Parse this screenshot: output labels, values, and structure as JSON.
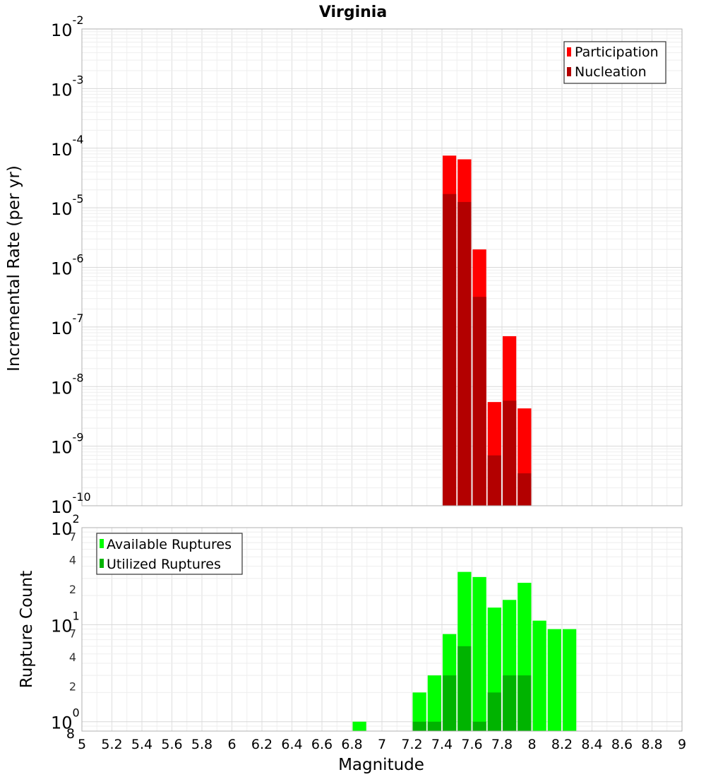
{
  "chart_data": [
    {
      "type": "bar",
      "title": "Virginia",
      "xlabel": "Magnitude",
      "ylabel": "Incremental Rate (per yr)",
      "yscale": "log",
      "ylim": [
        1e-10,
        0.01
      ],
      "xlim": [
        5,
        9
      ],
      "bin_width": 0.1,
      "legend_position": "top-right",
      "colors": {
        "Participation": "#ff0000",
        "Nucleation": "#b30000"
      },
      "y_tick_labels": [
        {
          "value": 0.01,
          "base": "10",
          "exp": "-2"
        },
        {
          "value": 0.001,
          "base": "10",
          "exp": "-3"
        },
        {
          "value": 0.0001,
          "base": "10",
          "exp": "-4"
        },
        {
          "value": 1e-05,
          "base": "10",
          "exp": "-5"
        },
        {
          "value": 1e-06,
          "base": "10",
          "exp": "-6"
        },
        {
          "value": 1e-07,
          "base": "10",
          "exp": "-7"
        },
        {
          "value": 1e-08,
          "base": "10",
          "exp": "-8"
        },
        {
          "value": 1e-09,
          "base": "10",
          "exp": "-9"
        },
        {
          "value": 1e-10,
          "base": "10",
          "exp": "-10"
        }
      ],
      "series": [
        {
          "name": "Participation",
          "points": [
            {
              "x": 7.45,
              "y": 7.5e-05
            },
            {
              "x": 7.55,
              "y": 6.5e-05
            },
            {
              "x": 7.65,
              "y": 2e-06
            },
            {
              "x": 7.75,
              "y": 5.5e-09
            },
            {
              "x": 7.85,
              "y": 7e-08
            },
            {
              "x": 7.95,
              "y": 4.3e-09
            }
          ]
        },
        {
          "name": "Nucleation",
          "points": [
            {
              "x": 7.45,
              "y": 1.7e-05
            },
            {
              "x": 7.55,
              "y": 1.25e-05
            },
            {
              "x": 7.65,
              "y": 3.2e-07
            },
            {
              "x": 7.75,
              "y": 7e-10
            },
            {
              "x": 7.85,
              "y": 5.8e-09
            },
            {
              "x": 7.95,
              "y": 3.5e-10
            }
          ]
        }
      ]
    },
    {
      "type": "bar",
      "title": "",
      "xlabel": "Magnitude",
      "ylabel": "Rupture Count",
      "yscale": "log",
      "ylim": [
        0.8,
        100
      ],
      "xlim": [
        5,
        9
      ],
      "bin_width": 0.1,
      "legend_position": "top-left",
      "colors": {
        "Available Ruptures": "#00ff00",
        "Utilized Ruptures": "#00b300"
      },
      "x_tick_labels": [
        "5",
        "5.2",
        "5.4",
        "5.6",
        "5.8",
        "6",
        "6.2",
        "6.4",
        "6.6",
        "6.8",
        "7",
        "7.2",
        "7.4",
        "7.6",
        "7.8",
        "8",
        "8.2",
        "8.4",
        "8.6",
        "8.8",
        "9"
      ],
      "y_decade_labels": [
        {
          "value": 100,
          "base": "10",
          "exp": "2"
        },
        {
          "value": 10,
          "base": "10",
          "exp": "1"
        },
        {
          "value": 1,
          "base": "10",
          "exp": "0"
        }
      ],
      "y_minor_labels": [
        {
          "value": 70,
          "label": "7"
        },
        {
          "value": 40,
          "label": "4"
        },
        {
          "value": 20,
          "label": "2"
        },
        {
          "value": 7,
          "label": "7"
        },
        {
          "value": 4,
          "label": "4"
        },
        {
          "value": 2,
          "label": "2"
        },
        {
          "value": 0.8,
          "label": "8"
        }
      ],
      "series": [
        {
          "name": "Available Ruptures",
          "points": [
            {
              "x": 6.85,
              "y": 1
            },
            {
              "x": 7.25,
              "y": 2
            },
            {
              "x": 7.35,
              "y": 3
            },
            {
              "x": 7.45,
              "y": 8
            },
            {
              "x": 7.55,
              "y": 35
            },
            {
              "x": 7.65,
              "y": 31
            },
            {
              "x": 7.75,
              "y": 15
            },
            {
              "x": 7.85,
              "y": 18
            },
            {
              "x": 7.95,
              "y": 27
            },
            {
              "x": 8.05,
              "y": 11
            },
            {
              "x": 8.15,
              "y": 9
            },
            {
              "x": 8.25,
              "y": 9
            }
          ]
        },
        {
          "name": "Utilized Ruptures",
          "points": [
            {
              "x": 7.25,
              "y": 1
            },
            {
              "x": 7.35,
              "y": 1
            },
            {
              "x": 7.45,
              "y": 3
            },
            {
              "x": 7.55,
              "y": 6
            },
            {
              "x": 7.65,
              "y": 1
            },
            {
              "x": 7.75,
              "y": 2
            },
            {
              "x": 7.85,
              "y": 3
            },
            {
              "x": 7.95,
              "y": 3
            }
          ]
        }
      ]
    }
  ]
}
